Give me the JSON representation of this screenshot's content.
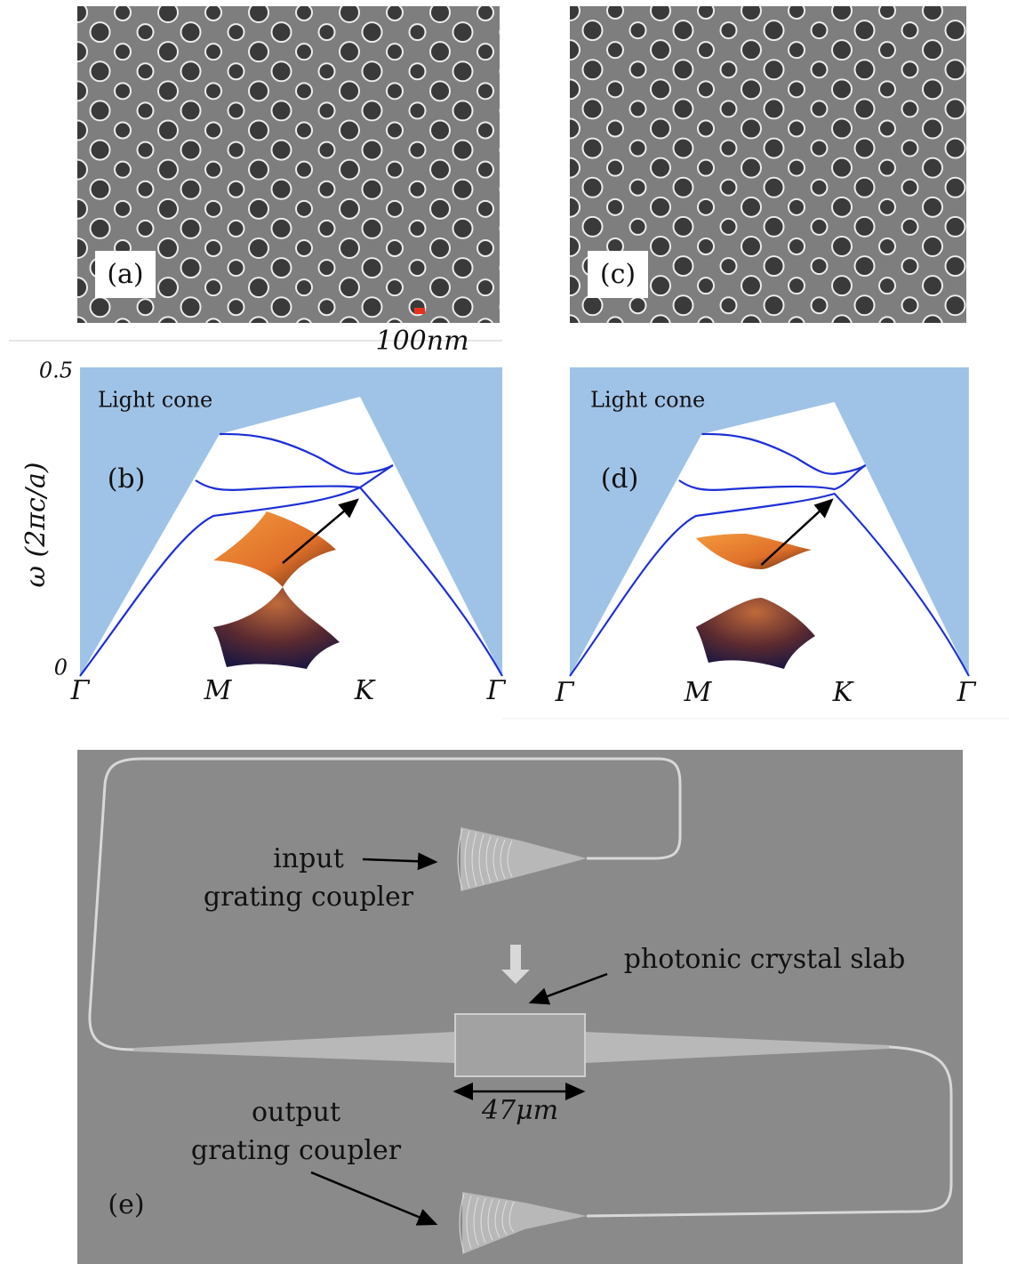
{
  "panels": {
    "a": {
      "label": "(a)",
      "scale_bar": "100nm"
    },
    "c": {
      "label": "(c)"
    },
    "b": {
      "label": "(b)",
      "light_cone": "Light cone",
      "y_axis_label": "ω (2πc/a)",
      "y_ticks": [
        "0.5",
        "0"
      ],
      "x_ticks": [
        "Γ",
        "M",
        "K",
        "Γ"
      ]
    },
    "d": {
      "label": "(d)",
      "light_cone": "Light cone",
      "x_ticks": [
        "Γ",
        "M",
        "K",
        "Γ"
      ]
    },
    "e": {
      "label": "(e)",
      "input": "input",
      "input_sub": "grating coupler",
      "slab": "photonic crystal slab",
      "width": "47μm",
      "output": "output",
      "output_sub": "grating coupler"
    }
  }
}
